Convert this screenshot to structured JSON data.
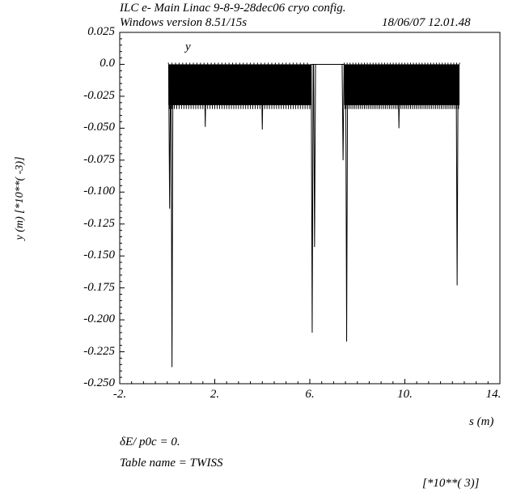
{
  "header": {
    "line1": "ILC e- Main Linac 9-8-9-28dec06 cryo config.",
    "line2_left": "Windows version 8.51/15s",
    "line2_right": "18/06/07  12.01.48"
  },
  "footer": {
    "delta_line": "δE/ p0c  =  0.",
    "table_name": "Table name = TWISS",
    "x_multiplier": "[*10**( 3)]"
  },
  "chart_data": {
    "type": "line",
    "series": [
      {
        "name": "y"
      }
    ],
    "xlabel": "s (m)",
    "ylabel": "y (m)  [*10**( -3)]",
    "xlim": [
      -2,
      14
    ],
    "ylim": [
      -0.25,
      0.025
    ],
    "x_ticks": [
      -2,
      2,
      6,
      10,
      14
    ],
    "x_tick_labels": [
      "-2.",
      "2.",
      "6.",
      "10.",
      "14."
    ],
    "y_ticks": [
      0.025,
      0.0,
      -0.025,
      -0.05,
      -0.075,
      -0.1,
      -0.125,
      -0.15,
      -0.175,
      -0.2,
      -0.225,
      -0.25
    ],
    "y_tick_labels": [
      "0.025",
      "0.0",
      "-0.025",
      "-0.050",
      "-0.075",
      "-0.100",
      "-0.125",
      "-0.150",
      "-0.175",
      "-0.200",
      "-0.225",
      "-0.250"
    ],
    "oscillation_bands": [
      {
        "x_start": 0.05,
        "x_end": 6.05,
        "y_upper": 0.0,
        "y_lower": -0.032,
        "y_lower_extreme": -0.035
      },
      {
        "x_start": 7.45,
        "x_end": 12.3,
        "y_upper": 0.0,
        "y_lower": -0.032,
        "y_lower_extreme": -0.035
      }
    ],
    "flat_segment": {
      "x_start": 6.2,
      "x_end": 7.35,
      "y": 0.0
    },
    "spikes": [
      {
        "x": 0.1,
        "y": -0.113
      },
      {
        "x": 0.2,
        "y": -0.237
      },
      {
        "x": 1.6,
        "y": -0.049
      },
      {
        "x": 4.0,
        "y": -0.051
      },
      {
        "x": 6.1,
        "y": -0.21
      },
      {
        "x": 6.2,
        "y": -0.143
      },
      {
        "x": 7.4,
        "y": -0.075
      },
      {
        "x": 7.55,
        "y": -0.217
      },
      {
        "x": 9.75,
        "y": -0.05
      },
      {
        "x": 12.2,
        "y": -0.173
      }
    ]
  }
}
